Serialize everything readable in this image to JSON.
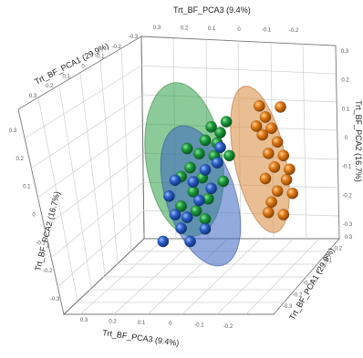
{
  "chart_data": {
    "type": "scatter",
    "projection": "3d",
    "axes": {
      "top": {
        "label": "Trt_BF_PCA3 (9.4%)",
        "ticks": [
          "0.3",
          "0.2",
          "0.1",
          "0",
          "-0.1",
          "-0.2"
        ]
      },
      "upper_left": {
        "label": "Trt_BF_PCA1 (29.9%)",
        "ticks": [
          "0.3",
          "0.2",
          "0.1",
          "0",
          "-0.1",
          "-0.2",
          "-0.3"
        ]
      },
      "left": {
        "label": "Trt_BF_PCA2 (16.7%)",
        "ticks": [
          "0.3",
          "0.2",
          "0.1",
          "0",
          "-0.1",
          "-0.2",
          "-0.3"
        ]
      },
      "right": {
        "label": "Trt_BF_PCA2 (16.7%)",
        "ticks": [
          "0.3",
          "0.2",
          "0.1",
          "0",
          "-0.1",
          "-0.2",
          "-0.3"
        ]
      },
      "bottom_left": {
        "label": "Trt_BF_PCA3 (9.4%)",
        "ticks": [
          "0.3",
          "0.2",
          "0.1",
          "0",
          "-0.1",
          "-0.2"
        ]
      },
      "bottom_right": {
        "label": "Trt_BF_PCA1 (29.9%)",
        "ticks": [
          "0.3",
          "0.2",
          "0.1",
          "0",
          "-0.1",
          "-0.2",
          "-0.3"
        ]
      }
    },
    "series": [
      {
        "color": "#1a9a3a",
        "ellipse_color": "#2e9e46",
        "points": [
          [
            0.05,
            0.12
          ],
          [
            0.08,
            0.15
          ],
          [
            0.1,
            0.1
          ],
          [
            0.12,
            0.05
          ],
          [
            0.15,
            0.0
          ],
          [
            0.18,
            -0.03
          ],
          [
            0.07,
            0.03
          ],
          [
            0.11,
            -0.05
          ],
          [
            0.04,
            -0.08
          ],
          [
            0.14,
            -0.1
          ],
          [
            0.09,
            -0.14
          ],
          [
            0.13,
            -0.18
          ],
          [
            0.06,
            0.08
          ],
          [
            0.16,
            0.08
          ],
          [
            0.02,
            0.02
          ],
          [
            0.1,
            -0.22
          ],
          [
            0.18,
            -0.15
          ],
          [
            0.03,
            0.16
          ]
        ]
      },
      {
        "color": "#2a5fc8",
        "ellipse_color": "#3a64c0",
        "points": [
          [
            0.06,
            0.0
          ],
          [
            0.1,
            -0.02
          ],
          [
            0.14,
            -0.06
          ],
          [
            0.08,
            -0.1
          ],
          [
            0.12,
            -0.14
          ],
          [
            0.16,
            -0.2
          ],
          [
            0.18,
            -0.24
          ],
          [
            0.2,
            -0.18
          ],
          [
            0.22,
            -0.1
          ],
          [
            0.1,
            -0.26
          ],
          [
            0.15,
            -0.3
          ],
          [
            0.24,
            -0.28
          ],
          [
            0.05,
            0.06
          ],
          [
            0.2,
            -0.04
          ]
        ]
      },
      {
        "color": "#e07a14",
        "ellipse_color": "#d9893a",
        "points": [
          [
            -0.08,
            0.2
          ],
          [
            -0.1,
            0.15
          ],
          [
            -0.12,
            0.1
          ],
          [
            -0.09,
            0.08
          ],
          [
            -0.14,
            0.04
          ],
          [
            -0.11,
            0.0
          ],
          [
            -0.16,
            -0.02
          ],
          [
            -0.13,
            -0.06
          ],
          [
            -0.1,
            -0.1
          ],
          [
            -0.17,
            -0.12
          ],
          [
            -0.14,
            -0.16
          ],
          [
            -0.12,
            -0.2
          ],
          [
            -0.18,
            -0.08
          ],
          [
            -0.07,
            0.12
          ],
          [
            -0.15,
            0.18
          ],
          [
            -0.19,
            -0.18
          ],
          [
            -0.11,
            -0.24
          ],
          [
            -0.16,
            -0.26
          ]
        ]
      }
    ]
  }
}
